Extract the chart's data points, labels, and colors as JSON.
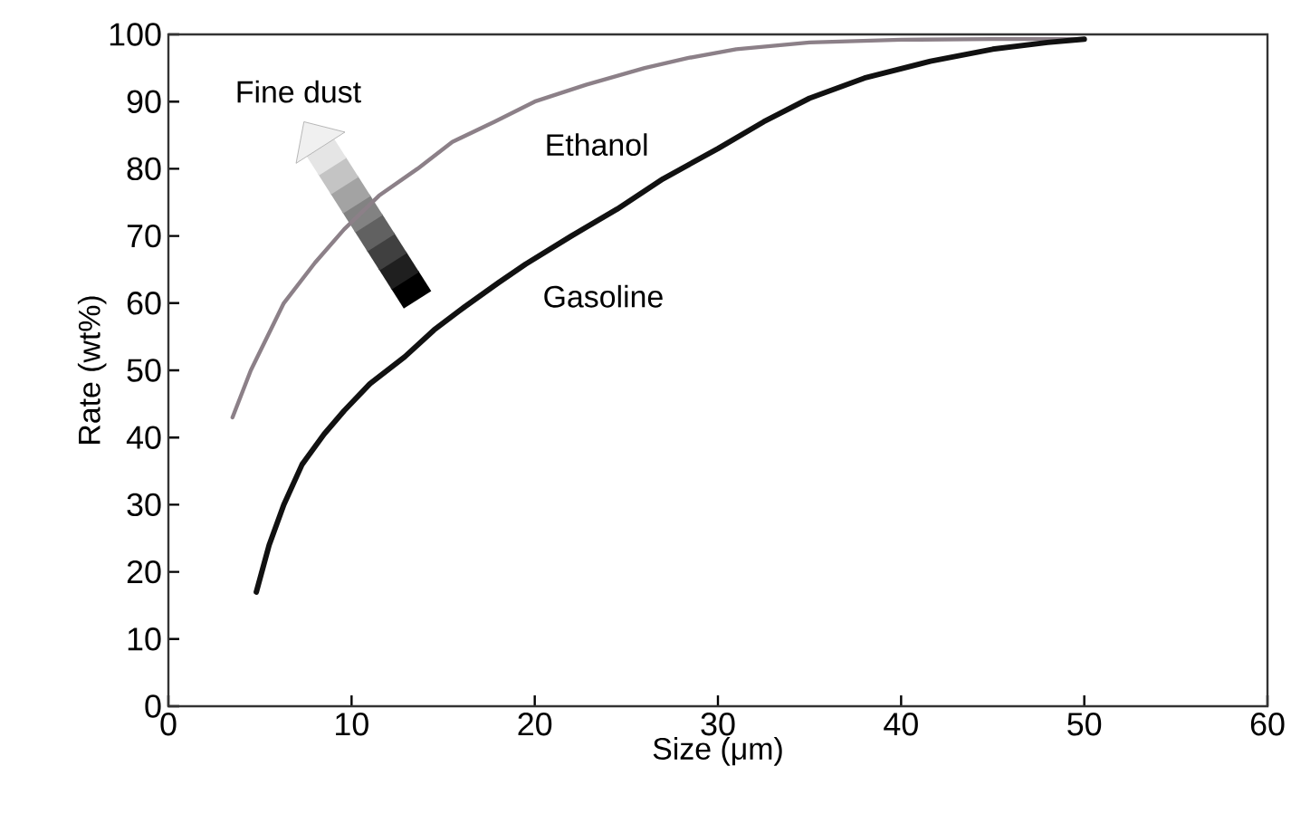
{
  "chart_data": {
    "type": "line",
    "xlabel": "Size (μm)",
    "ylabel": "Rate (wt%)",
    "xlim": [
      0,
      60
    ],
    "ylim": [
      0,
      100
    ],
    "xticks": [
      0,
      10,
      20,
      30,
      40,
      50,
      60
    ],
    "yticks": [
      0,
      10,
      20,
      30,
      40,
      50,
      60,
      70,
      80,
      90,
      100
    ],
    "annotations": [
      "Fine dust"
    ],
    "series": [
      {
        "name": "Ethanol",
        "color": "#8c8088",
        "x": [
          3.5,
          4.5,
          6.3,
          8,
          9.6,
          11.5,
          13.6,
          15.5,
          17.8,
          20,
          22.8,
          26,
          28.4,
          31,
          35,
          40,
          45,
          50
        ],
        "values": [
          43,
          50,
          60,
          66,
          71,
          76,
          80,
          84,
          87,
          90,
          92.5,
          95,
          96.5,
          97.8,
          98.8,
          99.2,
          99.3,
          99.3
        ]
      },
      {
        "name": "Gasoline",
        "color": "#111111",
        "x": [
          4.8,
          5.5,
          6.3,
          7.3,
          8.5,
          9.6,
          11,
          12.9,
          14.5,
          16.2,
          18,
          19.5,
          22,
          24.5,
          27,
          30,
          32.5,
          35,
          38,
          41.6,
          45,
          48,
          50
        ],
        "values": [
          17,
          24,
          30,
          36,
          40.5,
          44,
          48,
          52,
          56,
          59.5,
          63,
          65.8,
          70,
          74,
          78.5,
          83,
          87,
          90.5,
          93.5,
          96,
          97.8,
          98.8,
          99.3
        ]
      }
    ]
  }
}
